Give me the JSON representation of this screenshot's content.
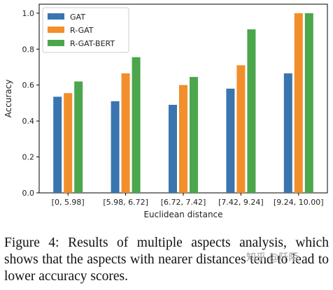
{
  "chart_data": {
    "type": "bar",
    "title": "",
    "xlabel": "Euclidean distance",
    "ylabel": "Accuracy",
    "categories": [
      "[0, 5.98]",
      "[5.98, 6.72]",
      "[6.72, 7.42]",
      "[7.42, 9.24]",
      "[9.24, 10.00]"
    ],
    "series": [
      {
        "name": "GAT",
        "color": "#3a75b0",
        "values": [
          0.535,
          0.51,
          0.49,
          0.58,
          0.665
        ]
      },
      {
        "name": "R-GAT",
        "color": "#f28e2b",
        "values": [
          0.555,
          0.665,
          0.6,
          0.71,
          1.0
        ]
      },
      {
        "name": "R-GAT-BERT",
        "color": "#4ca64c",
        "values": [
          0.62,
          0.755,
          0.645,
          0.91,
          1.0
        ]
      }
    ],
    "ylim": [
      0.0,
      1.05
    ],
    "yticks": [
      "0.0",
      "0.2",
      "0.4",
      "0.6",
      "0.8",
      "1.0"
    ],
    "grid": false,
    "legend_position": "top-left"
  },
  "caption": "Figure 4: Results of multiple aspects analysis, which shows that the aspects with nearer distances tend to lead to lower accuracy scores.",
  "watermark": "知乎 @阡陌"
}
